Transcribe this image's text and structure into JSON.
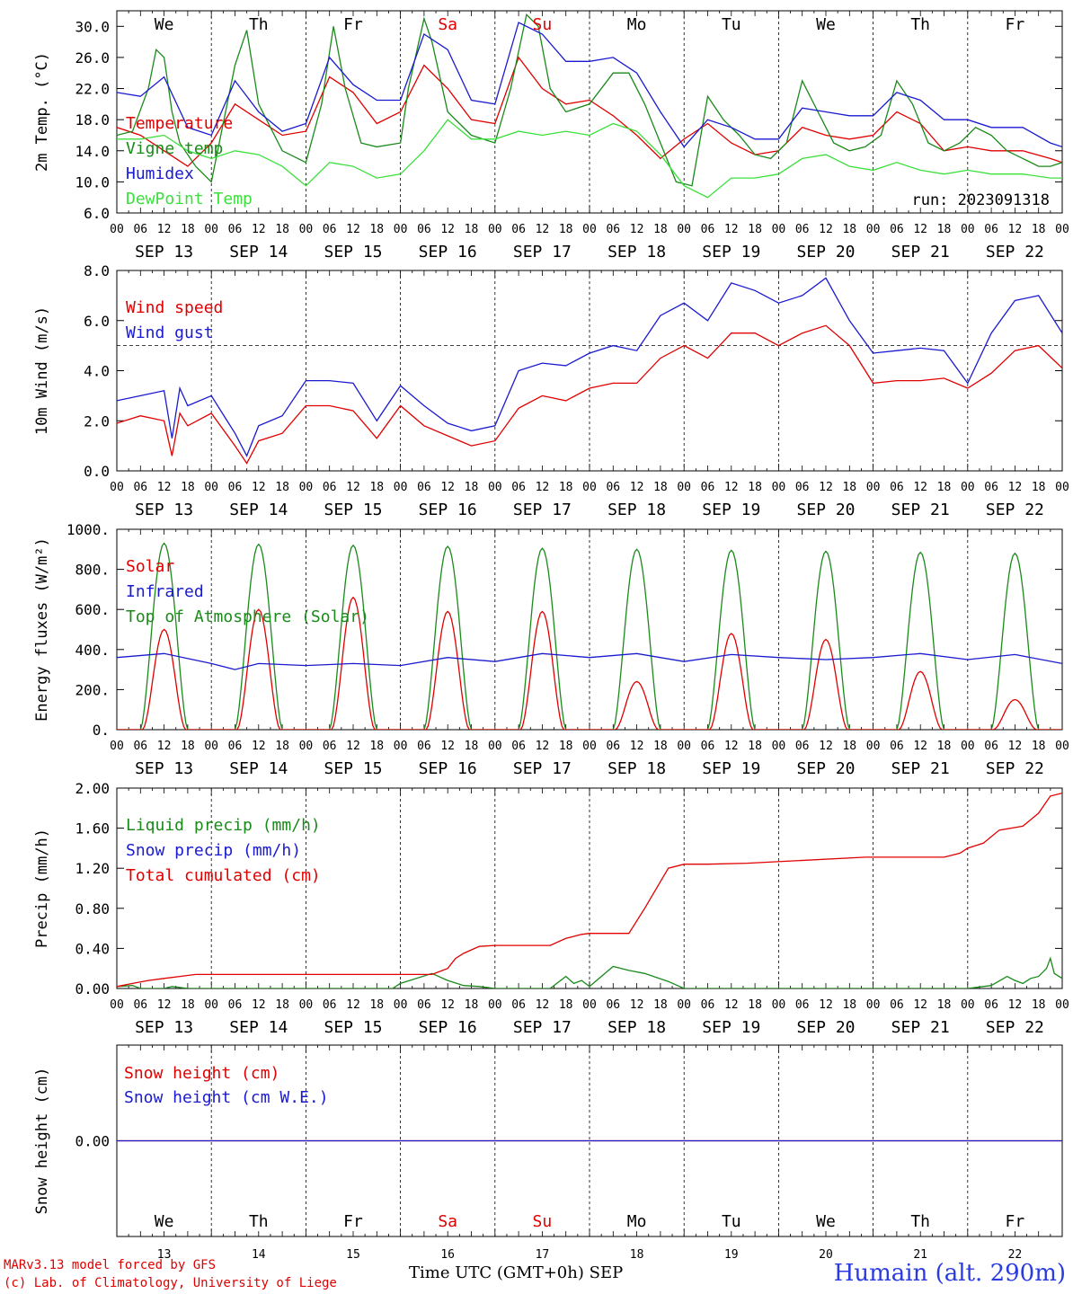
{
  "chart_data": [
    {
      "id": "temperature",
      "type": "line",
      "ylabel": "2m Temp. (°C)",
      "ylim": [
        6,
        32
      ],
      "yticks": [
        "6.0",
        "10.0",
        "14.0",
        "18.0",
        "22.0",
        "26.0",
        "30.0"
      ],
      "annotation": "run: 2023091318",
      "series": [
        {
          "name": "Temperature",
          "color": "#e00000",
          "x": [
            0,
            6,
            12,
            18,
            24,
            30,
            36,
            42,
            48,
            54,
            60,
            66,
            72,
            78,
            84,
            90,
            96,
            102,
            108,
            114,
            120,
            126,
            132,
            138,
            144,
            150,
            156,
            162,
            168,
            174,
            180,
            186,
            192,
            198,
            204,
            210,
            216,
            222,
            230,
            237,
            240
          ],
          "values": [
            17.0,
            16.0,
            14.0,
            12.0,
            15.0,
            20.0,
            18.0,
            16.0,
            16.5,
            23.5,
            21.5,
            17.5,
            19.0,
            25.0,
            22.0,
            18.0,
            17.5,
            26.0,
            22.0,
            20.0,
            20.5,
            18.5,
            16.0,
            13.0,
            15.5,
            17.5,
            15.0,
            13.5,
            14.0,
            17.0,
            16.0,
            15.5,
            16.0,
            19.0,
            17.5,
            14.0,
            14.5,
            14.0,
            14.0,
            13.0,
            12.5
          ]
        },
        {
          "name": "Vigne temp",
          "color": "#1a8a1a",
          "x": [
            0,
            4,
            8,
            10,
            12,
            14,
            16,
            20,
            24,
            30,
            33,
            36,
            42,
            48,
            52,
            55,
            58,
            62,
            66,
            72,
            74,
            78,
            80,
            84,
            90,
            96,
            100,
            104,
            107,
            110,
            114,
            120,
            126,
            130,
            134,
            138,
            142,
            146,
            150,
            154,
            158,
            162,
            166,
            170,
            174,
            178,
            182,
            186,
            190,
            194,
            198,
            202,
            206,
            210,
            214,
            218,
            222,
            226,
            230,
            234,
            237,
            240
          ],
          "values": [
            16.0,
            16.5,
            22.0,
            27.0,
            26.0,
            19.0,
            15.0,
            12.0,
            10.0,
            25.0,
            29.5,
            20.0,
            14.0,
            12.5,
            20.0,
            30.0,
            22.0,
            15.0,
            14.5,
            15.0,
            22.0,
            31.0,
            28.0,
            19.0,
            16.0,
            15.0,
            22.0,
            31.5,
            30.0,
            22.0,
            19.0,
            20.0,
            24.0,
            24.0,
            20.0,
            15.0,
            10.0,
            9.5,
            21.0,
            18.0,
            16.0,
            13.5,
            13.0,
            15.0,
            23.0,
            19.0,
            15.0,
            14.0,
            14.5,
            16.0,
            23.0,
            20.0,
            15.0,
            14.0,
            15.0,
            17.0,
            16.0,
            14.0,
            13.0,
            12.0,
            12.0,
            12.5
          ]
        },
        {
          "name": "Humidex",
          "color": "#1a1ad0",
          "x": [
            0,
            6,
            12,
            18,
            24,
            30,
            36,
            42,
            48,
            54,
            60,
            66,
            72,
            78,
            84,
            90,
            96,
            102,
            108,
            114,
            120,
            126,
            132,
            138,
            144,
            150,
            156,
            162,
            168,
            174,
            180,
            186,
            192,
            198,
            204,
            210,
            216,
            222,
            230,
            237,
            240
          ],
          "values": [
            21.5,
            21.0,
            23.5,
            17.0,
            16.0,
            23.0,
            19.0,
            16.5,
            17.5,
            26.0,
            22.5,
            20.5,
            20.5,
            29.0,
            27.0,
            20.5,
            20.0,
            30.5,
            29.0,
            25.5,
            25.5,
            26.0,
            24.0,
            19.0,
            14.5,
            18.0,
            17.0,
            15.5,
            15.5,
            19.5,
            19.0,
            18.5,
            18.5,
            21.5,
            20.5,
            18.0,
            18.0,
            17.0,
            17.0,
            15.0,
            14.5
          ]
        },
        {
          "name": "DewPoint Temp",
          "color": "#3ce03c",
          "x": [
            0,
            6,
            12,
            18,
            24,
            30,
            36,
            42,
            48,
            54,
            60,
            66,
            72,
            78,
            84,
            90,
            96,
            102,
            108,
            114,
            120,
            126,
            132,
            138,
            144,
            150,
            156,
            162,
            168,
            174,
            180,
            186,
            192,
            198,
            204,
            210,
            216,
            222,
            230,
            237,
            240
          ],
          "values": [
            15.5,
            15.5,
            16.0,
            14.0,
            13.0,
            14.0,
            13.5,
            12.0,
            9.5,
            12.5,
            12.0,
            10.5,
            11.0,
            14.0,
            18.0,
            15.5,
            15.5,
            16.5,
            16.0,
            16.5,
            16.0,
            17.5,
            16.5,
            13.5,
            9.5,
            8.0,
            10.5,
            10.5,
            11.0,
            13.0,
            13.5,
            12.0,
            11.5,
            12.5,
            11.5,
            11.0,
            11.5,
            11.0,
            11.0,
            10.5,
            10.5
          ]
        }
      ]
    },
    {
      "id": "wind",
      "type": "line",
      "ylabel": "10m Wind (m/s)",
      "ylim": [
        0,
        8
      ],
      "yticks": [
        "0.0",
        "2.0",
        "4.0",
        "6.0",
        "8.0"
      ],
      "reference_line": 5,
      "series": [
        {
          "name": "Wind speed",
          "color": "#e00000",
          "x": [
            0,
            6,
            12,
            14,
            16,
            18,
            24,
            30,
            33,
            36,
            42,
            48,
            54,
            60,
            66,
            72,
            78,
            84,
            90,
            96,
            102,
            108,
            114,
            120,
            126,
            132,
            138,
            144,
            150,
            156,
            162,
            168,
            174,
            180,
            186,
            192,
            198,
            204,
            210,
            216,
            222,
            228,
            234,
            240
          ],
          "values": [
            1.9,
            2.2,
            2.0,
            0.6,
            2.3,
            1.8,
            2.3,
            1.0,
            0.3,
            1.2,
            1.5,
            2.6,
            2.6,
            2.4,
            1.3,
            2.6,
            1.8,
            1.4,
            1.0,
            1.2,
            2.5,
            3.0,
            2.8,
            3.3,
            3.5,
            3.5,
            4.5,
            5.0,
            4.5,
            5.5,
            5.5,
            5.0,
            5.5,
            5.8,
            5.0,
            3.5,
            3.6,
            3.6,
            3.7,
            3.3,
            3.9,
            4.8,
            5.0,
            4.1
          ]
        },
        {
          "name": "Wind gust",
          "color": "#1a1ad0",
          "x": [
            0,
            6,
            12,
            14,
            16,
            18,
            24,
            30,
            33,
            36,
            42,
            48,
            54,
            60,
            66,
            72,
            78,
            84,
            90,
            96,
            102,
            108,
            114,
            120,
            126,
            132,
            138,
            144,
            150,
            156,
            162,
            168,
            174,
            180,
            186,
            192,
            198,
            204,
            210,
            216,
            222,
            228,
            234,
            240
          ],
          "values": [
            2.8,
            3.0,
            3.2,
            1.3,
            3.3,
            2.6,
            3.0,
            1.5,
            0.6,
            1.8,
            2.2,
            3.6,
            3.6,
            3.5,
            2.0,
            3.4,
            2.6,
            1.9,
            1.6,
            1.8,
            4.0,
            4.3,
            4.2,
            4.7,
            5.0,
            4.8,
            6.2,
            6.7,
            6.0,
            7.5,
            7.2,
            6.7,
            7.0,
            7.7,
            6.0,
            4.7,
            4.8,
            4.9,
            4.8,
            3.5,
            5.5,
            6.8,
            7.0,
            5.5
          ]
        }
      ]
    },
    {
      "id": "energy",
      "type": "line",
      "ylabel": "Energy fluxes (W/m²)",
      "ylim": [
        0,
        1000
      ],
      "yticks": [
        "0.",
        "200.",
        "400.",
        "600.",
        "800.",
        "1000."
      ],
      "toa_daily_peaks": [
        930,
        925,
        920,
        915,
        905,
        900,
        895,
        890,
        885,
        880
      ],
      "solar_daily_peaks": [
        500,
        600,
        660,
        590,
        590,
        240,
        480,
        450,
        290,
        150
      ],
      "series": [
        {
          "name": "Solar",
          "color": "#e00000"
        },
        {
          "name": "Infrared",
          "color": "#1a1ad0",
          "x": [
            0,
            12,
            24,
            30,
            36,
            48,
            60,
            72,
            84,
            96,
            108,
            120,
            132,
            144,
            156,
            168,
            180,
            192,
            204,
            216,
            228,
            240
          ],
          "values": [
            360,
            380,
            330,
            300,
            330,
            320,
            330,
            320,
            360,
            340,
            380,
            360,
            380,
            340,
            375,
            360,
            350,
            360,
            380,
            350,
            375,
            330
          ]
        },
        {
          "name": "Top of Atmosphere (Solar)",
          "color": "#1a8a1a"
        }
      ]
    },
    {
      "id": "precip",
      "type": "line",
      "ylabel": "Precip (mm/h)",
      "ylim": [
        0,
        2
      ],
      "yticks": [
        "0.00",
        "0.40",
        "0.80",
        "1.20",
        "1.60",
        "2.00"
      ],
      "series": [
        {
          "name": "Liquid precip (mm/h)",
          "color": "#1a8a1a",
          "x": [
            0,
            4,
            6,
            8,
            10,
            12,
            14,
            16,
            18,
            20,
            70,
            72,
            80,
            84,
            88,
            92,
            96,
            100,
            110,
            114,
            116,
            118,
            120,
            126,
            130,
            134,
            140,
            144,
            216,
            222,
            226,
            228,
            230,
            232,
            234,
            236,
            237,
            238,
            240
          ],
          "values": [
            0.02,
            0.03,
            0.0,
            0.0,
            0.0,
            0.0,
            0.02,
            0.01,
            0.0,
            0.0,
            0.0,
            0.05,
            0.15,
            0.08,
            0.03,
            0.02,
            0.0,
            0.0,
            0.0,
            0.12,
            0.05,
            0.08,
            0.02,
            0.22,
            0.18,
            0.15,
            0.07,
            0.0,
            0.0,
            0.03,
            0.12,
            0.08,
            0.05,
            0.1,
            0.12,
            0.2,
            0.3,
            0.15,
            0.1
          ]
        },
        {
          "name": "Snow precip (mm/h)",
          "color": "#1a1ad0"
        },
        {
          "name": "Total cumulated (cm)",
          "color": "#e00000",
          "x": [
            0,
            4,
            8,
            12,
            16,
            20,
            40,
            60,
            80,
            84,
            86,
            88,
            92,
            96,
            110,
            114,
            118,
            120,
            130,
            134,
            140,
            144,
            150,
            160,
            170,
            190,
            200,
            210,
            214,
            216,
            220,
            224,
            230,
            234,
            237,
            240
          ],
          "values": [
            0.02,
            0.05,
            0.08,
            0.1,
            0.12,
            0.14,
            0.14,
            0.14,
            0.14,
            0.2,
            0.3,
            0.35,
            0.42,
            0.43,
            0.43,
            0.5,
            0.54,
            0.55,
            0.55,
            0.8,
            1.2,
            1.24,
            1.24,
            1.25,
            1.27,
            1.31,
            1.31,
            1.31,
            1.35,
            1.4,
            1.45,
            1.58,
            1.62,
            1.75,
            1.92,
            1.95
          ]
        }
      ]
    },
    {
      "id": "snow",
      "type": "line",
      "ylabel": "Snow height (cm)",
      "ylim": [
        -1,
        1
      ],
      "yticks": [
        "0.00"
      ],
      "series": [
        {
          "name": "Snow height (cm)",
          "color": "#e00000",
          "x": [
            0,
            240
          ],
          "values": [
            0,
            0
          ]
        },
        {
          "name": "Snow height (cm W.E.)",
          "color": "#1a1ad0",
          "x": [
            0,
            240
          ],
          "values": [
            0,
            0
          ]
        }
      ]
    }
  ],
  "axis": {
    "hour_ticks": [
      "00",
      "06",
      "12",
      "18"
    ],
    "end_tick": "00",
    "dates": [
      "SEP 13",
      "SEP 14",
      "SEP 15",
      "SEP 16",
      "SEP 17",
      "SEP 18",
      "SEP 19",
      "SEP 20",
      "SEP 21",
      "SEP 22"
    ],
    "weekdays": [
      "We",
      "Th",
      "Fr",
      "Sa",
      "Su",
      "Mo",
      "Tu",
      "We",
      "Th",
      "Fr"
    ],
    "weekend_color": "#e00000",
    "weekday_color": "#000000",
    "weekend_days": [
      3,
      4
    ],
    "day_numbers": [
      "13",
      "14",
      "15",
      "16",
      "17",
      "18",
      "19",
      "20",
      "21",
      "22"
    ],
    "month_label": "SEP",
    "xlabel": "Time UTC (GMT+0h)"
  },
  "footer": {
    "model_line": "MARv3.13 model forced by GFS",
    "credit_line": "(c) Lab. of Climatology, University of Liege",
    "station": "Humain (alt. 290m)"
  }
}
